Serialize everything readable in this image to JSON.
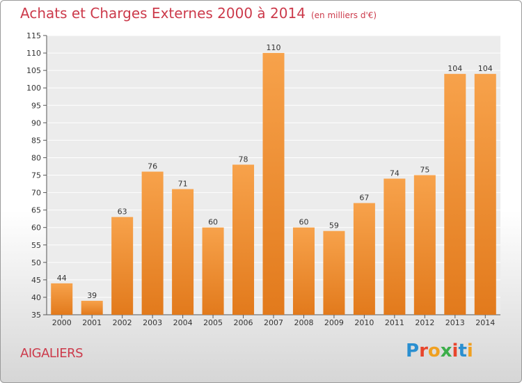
{
  "header": {
    "title": "Achats et Charges Externes 2000 à 2014",
    "subtitle": "(en milliers d'€)"
  },
  "footer": {
    "town": "AIGALIERS",
    "logo_text": "Proxiti"
  },
  "colors": {
    "bar": "#f08a2e",
    "bar_light": "#f7a955",
    "title": "#cc3a4b"
  },
  "chart_data": {
    "type": "bar",
    "title": "Achats et Charges Externes 2000 à 2014",
    "subtitle": "(en milliers d'€)",
    "categories": [
      "2000",
      "2001",
      "2002",
      "2003",
      "2004",
      "2005",
      "2006",
      "2007",
      "2008",
      "2009",
      "2010",
      "2011",
      "2012",
      "2013",
      "2014"
    ],
    "values": [
      44,
      39,
      63,
      76,
      71,
      60,
      78,
      110,
      60,
      59,
      67,
      74,
      75,
      104,
      104
    ],
    "ylim": [
      35,
      115
    ],
    "yticks": [
      35,
      40,
      45,
      50,
      55,
      60,
      65,
      70,
      75,
      80,
      85,
      90,
      95,
      100,
      105,
      110,
      115
    ],
    "grid": "horizontal",
    "legend": "none"
  }
}
